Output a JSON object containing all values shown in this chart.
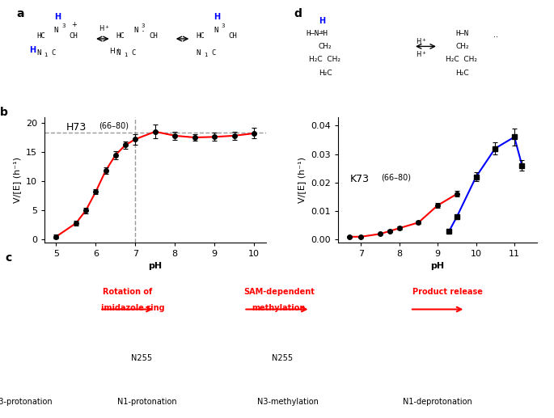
{
  "panel_b": {
    "label": "b",
    "title": "H73",
    "title_sub": "(66–80)",
    "xlabel": "pH",
    "ylabel": "V/[E] (h⁻¹)",
    "xlim": [
      4.7,
      10.3
    ],
    "ylim": [
      -0.5,
      21
    ],
    "yticks": [
      0,
      5,
      10,
      15,
      20
    ],
    "xticks": [
      5,
      6,
      7,
      8,
      9,
      10
    ],
    "vline_x": 7.0,
    "hline_y": 18.3,
    "red_x": [
      5.0,
      5.5,
      5.75,
      6.0,
      6.25,
      6.5,
      6.75,
      7.0,
      7.5,
      8.0,
      8.5,
      9.0,
      9.5,
      10.0
    ],
    "red_y": [
      0.5,
      2.8,
      5.0,
      8.2,
      11.8,
      14.5,
      16.2,
      17.2,
      18.5,
      17.8,
      17.5,
      17.6,
      17.8,
      18.2
    ],
    "red_yerr": [
      0.3,
      0.4,
      0.5,
      0.4,
      0.6,
      0.7,
      0.6,
      0.9,
      1.2,
      0.7,
      0.6,
      0.7,
      0.7,
      0.9
    ],
    "line_color": "#FF0000",
    "marker_color": "black",
    "marker": "o",
    "marker_size": 4
  },
  "panel_d": {
    "label": "d",
    "title": "K73",
    "title_sub": "(66–80)",
    "xlabel": "pH",
    "ylabel": "V/[E] (h⁻¹)",
    "xlim": [
      6.4,
      11.6
    ],
    "ylim": [
      -0.001,
      0.043
    ],
    "yticks": [
      0.0,
      0.01,
      0.02,
      0.03,
      0.04
    ],
    "xticks": [
      7,
      8,
      9,
      10,
      11
    ],
    "red_x": [
      6.7,
      7.0,
      7.5,
      7.75,
      8.0,
      8.5,
      9.0,
      9.5
    ],
    "red_y": [
      0.001,
      0.001,
      0.002,
      0.003,
      0.004,
      0.006,
      0.012,
      0.016
    ],
    "red_yerr": [
      0.0003,
      0.0003,
      0.0003,
      0.0004,
      0.0005,
      0.0005,
      0.0008,
      0.001
    ],
    "blue_x": [
      9.3,
      9.5,
      10.0,
      10.5,
      11.0,
      11.2
    ],
    "blue_y": [
      0.003,
      0.008,
      0.022,
      0.032,
      0.036,
      0.026
    ],
    "blue_yerr": [
      0.0005,
      0.0007,
      0.0015,
      0.002,
      0.003,
      0.0018
    ],
    "red_color": "#FF0000",
    "blue_color": "#0000FF",
    "marker_color": "black",
    "red_marker": "o",
    "blue_marker": "s",
    "marker_size": 4
  },
  "fig_bg": "#ffffff",
  "panel_label_fontsize": 10,
  "axis_label_fontsize": 8,
  "tick_label_fontsize": 8,
  "title_fontsize": 9,
  "sub_fontsize": 7
}
